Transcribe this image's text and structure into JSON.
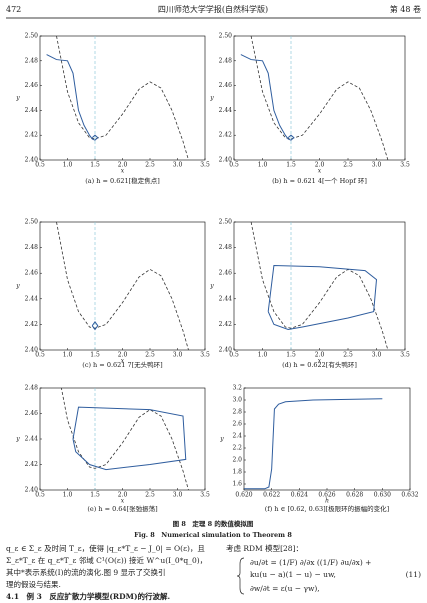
{
  "header": {
    "page": "472",
    "journal": "四川师范大学学报(自然科学版)",
    "volume": "第 48 卷"
  },
  "figure": {
    "nullcline": {
      "x": [
        0.8,
        1.0,
        1.2,
        1.4,
        1.5,
        1.7,
        2.0,
        2.3,
        2.5,
        2.7,
        2.9,
        3.1,
        3.2
      ],
      "y": [
        2.5,
        2.455,
        2.43,
        2.418,
        2.417,
        2.42,
        2.437,
        2.457,
        2.463,
        2.458,
        2.44,
        2.415,
        2.4
      ],
      "color": "#333333"
    },
    "vline": {
      "x": 1.5,
      "color": "#8fc9d9"
    },
    "panels": [
      {
        "type": "phase",
        "caption": "(a) h = 0.621[稳定焦点]",
        "xlabel": "x",
        "ylabel": "y",
        "xlim": [
          0.5,
          3.5
        ],
        "ylim": [
          2.4,
          2.5
        ],
        "xticks": [
          0.5,
          {
            "value": 1,
            "label": "1.0"
          },
          1.5,
          {
            "value": 2,
            "label": "2.0"
          },
          2.5,
          {
            "value": 3,
            "label": "3.0"
          },
          3.5
        ],
        "yticks": [
          {
            "value": 2.4,
            "label": "2.40"
          },
          2.42,
          2.44,
          2.46,
          2.48,
          {
            "value": 2.5,
            "label": "2.50"
          }
        ],
        "series": [
          {
            "color": "#2f5d9e",
            "x": [
              0.62,
              0.8,
              1.0,
              1.1,
              1.2,
              1.3,
              1.4,
              1.45,
              1.5,
              1.55,
              1.5,
              1.45
            ],
            "y": [
              2.485,
              2.481,
              2.48,
              2.47,
              2.44,
              2.428,
              2.42,
              2.417,
              2.416,
              2.418,
              2.42,
              2.418
            ]
          }
        ]
      },
      {
        "type": "phase",
        "caption": "(b) h = 0.621 4[一个 Hopf 环]",
        "xlabel": "x",
        "ylabel": "y",
        "xlim": [
          0.5,
          3.5
        ],
        "ylim": [
          2.4,
          2.5
        ],
        "xticks": [
          0.5,
          {
            "value": 1,
            "label": "1.0"
          },
          1.5,
          {
            "value": 2,
            "label": "2.0"
          },
          2.5,
          {
            "value": 3,
            "label": "3.0"
          },
          3.5
        ],
        "yticks": [
          {
            "value": 2.4,
            "label": "2.40"
          },
          2.42,
          2.44,
          2.46,
          2.48,
          {
            "value": 2.5,
            "label": "2.50"
          }
        ],
        "series": [
          {
            "color": "#2f5d9e",
            "x": [
              0.62,
              0.8,
              1.0,
              1.1,
              1.2,
              1.3,
              1.4,
              1.45,
              1.5,
              1.55,
              1.5,
              1.45
            ],
            "y": [
              2.485,
              2.481,
              2.48,
              2.47,
              2.44,
              2.428,
              2.42,
              2.417,
              2.416,
              2.418,
              2.42,
              2.418
            ]
          }
        ]
      },
      {
        "type": "phase",
        "caption": "(c) h = 0.621 7[无头鸭环]",
        "xlabel": "x",
        "ylabel": "y",
        "xlim": [
          0.5,
          3.5
        ],
        "ylim": [
          2.4,
          2.5
        ],
        "xticks": [
          0.5,
          {
            "value": 1,
            "label": "1.0"
          },
          1.5,
          {
            "value": 2,
            "label": "2.0"
          },
          2.5,
          {
            "value": 3,
            "label": "3.0"
          },
          3.5
        ],
        "yticks": [
          {
            "value": 2.4,
            "label": "2.40"
          },
          2.42,
          2.44,
          2.46,
          2.48,
          {
            "value": 2.5,
            "label": "2.50"
          }
        ],
        "series": [
          {
            "color": "#2f5d9e",
            "x": [
              1.45,
              1.5,
              1.55,
              1.5,
              1.45
            ],
            "y": [
              2.419,
              2.422,
              2.419,
              2.416,
              2.419
            ]
          }
        ]
      },
      {
        "type": "phase",
        "caption": "(d) h = 0.622[有头鸭环]",
        "xlabel": "x",
        "ylabel": "y",
        "xlim": [
          0.5,
          3.5
        ],
        "ylim": [
          2.4,
          2.5
        ],
        "xticks": [
          0.5,
          {
            "value": 1,
            "label": "1.0"
          },
          1.5,
          {
            "value": 2,
            "label": "2.0"
          },
          2.5,
          {
            "value": 3,
            "label": "3.0"
          },
          3.5
        ],
        "yticks": [
          {
            "value": 2.4,
            "label": "2.40"
          },
          2.42,
          2.44,
          2.46,
          2.48,
          {
            "value": 2.5,
            "label": "2.50"
          }
        ],
        "series": [
          {
            "color": "#2f5d9e",
            "x": [
              1.1,
              1.2,
              2.0,
              2.8,
              3.0,
              2.95,
              2.5,
              1.7,
              1.45,
              1.2,
              1.1
            ],
            "y": [
              2.43,
              2.466,
              2.465,
              2.462,
              2.455,
              2.43,
              2.425,
              2.418,
              2.416,
              2.42,
              2.43
            ]
          }
        ]
      },
      {
        "type": "phase",
        "caption": "(e) h = 0.64[张弛振荡]",
        "xlabel": "x",
        "ylabel": "y",
        "xlim": [
          0.5,
          3.5
        ],
        "ylim": [
          2.4,
          2.48
        ],
        "xticks": [
          0.5,
          {
            "value": 1,
            "label": "1.0"
          },
          1.5,
          {
            "value": 2,
            "label": "2.0"
          },
          2.5,
          {
            "value": 3,
            "label": "3.0"
          },
          3.5
        ],
        "yticks": [
          {
            "value": 2.4,
            "label": "2.40"
          },
          2.42,
          2.44,
          2.46,
          2.48
        ],
        "series": [
          {
            "color": "#2f5d9e",
            "x": [
              1.1,
              1.2,
              2.5,
              3.1,
              3.15,
              2.5,
              1.7,
              1.4,
              1.15,
              1.1
            ],
            "y": [
              2.44,
              2.465,
              2.463,
              2.458,
              2.424,
              2.42,
              2.416,
              2.42,
              2.43,
              2.44
            ]
          }
        ]
      },
      {
        "type": "bifurcation",
        "caption": "(f) h ∈ [0.62, 0.63][极限环的振幅的变化]",
        "xlabel": "h",
        "ylabel": "y",
        "xlim": [
          0.62,
          0.632
        ],
        "ylim": [
          1.5,
          3.2
        ],
        "xticks": [
          {
            "value": 0.62,
            "label": "0.620"
          },
          0.622,
          0.624,
          0.626,
          0.628,
          {
            "value": 0.63,
            "label": "0.630"
          },
          0.632
        ],
        "yticks": [
          1.6,
          1.8,
          {
            "value": 2,
            "label": "2.0"
          },
          2.2,
          2.4,
          2.6,
          2.8,
          {
            "value": 3,
            "label": "3.0"
          },
          3.2
        ],
        "series": [
          {
            "color": "#2f5d9e",
            "x": [
              0.62,
              0.6215,
              0.6218,
              0.622,
              0.6222,
              0.6225,
              0.623,
              0.625,
              0.6275,
              0.63
            ],
            "y": [
              1.52,
              1.52,
              1.55,
              1.85,
              2.85,
              2.93,
              2.97,
              3.0,
              3.01,
              3.02
            ]
          }
        ]
      }
    ],
    "title_cn": "图 8　定理 8 的数值模拟图",
    "title_en": "Fig. 8　Numerical simulation to Theorem 8"
  },
  "body": {
    "left": [
      "q_ε ∈ Σ_ε 及时间 T_ε，使得 |q_ε*T_ε − J_0| = O(ε)，且",
      "Σ_ε*T_ε 在 q_ε*T_ε 邻域 C¹(O(ε)) 接近 W^u(I_0*q_0)，",
      "其中*表示系统(I)的流的演化.图 9 显示了交换引",
      "理的假设与结果."
    ],
    "section": "4.1　例 3　反应扩散力学模型(RDM)的行波解.",
    "right_intro": "考虑 RDM 模型[28]：",
    "equation": [
      "∂u/∂t = (1/F) ∂/∂x ((1/F) ∂u/∂x) +",
      "ku(u − a)(1 − u) − uw,",
      "∂w/∂t = ε(u − γw),"
    ],
    "eq_number": "(11)"
  }
}
